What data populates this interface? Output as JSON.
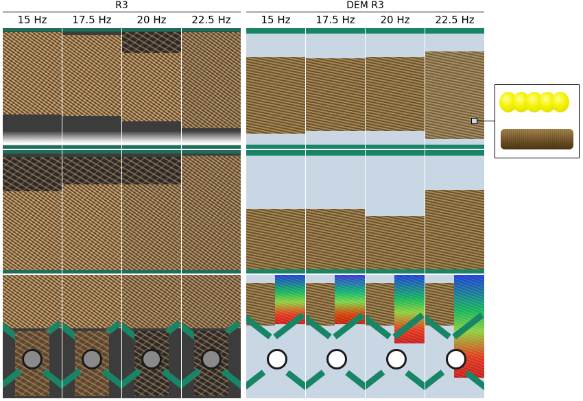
{
  "groups": [
    {
      "title": "R3"
    },
    {
      "title": "DEM R3"
    }
  ],
  "frequencies": [
    "15 Hz",
    "17.5 Hz",
    "20 Hz",
    "22.5 Hz"
  ],
  "colors": {
    "rail": "#178566",
    "particle": "#86693c",
    "dem_background": "#c9d7e4",
    "inset_sphere": "#f2f200"
  }
}
